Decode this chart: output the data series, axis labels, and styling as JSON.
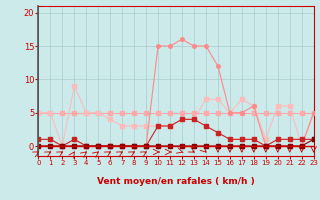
{
  "title": "",
  "xlabel": "Vent moyen/en rafales ( km/h )",
  "bg_color": "#cceaea",
  "grid_color": "#aacccc",
  "x_ticks": [
    0,
    1,
    2,
    3,
    4,
    5,
    6,
    7,
    8,
    9,
    10,
    11,
    12,
    13,
    14,
    15,
    16,
    17,
    18,
    19,
    20,
    21,
    22,
    23
  ],
  "y_ticks": [
    0,
    5,
    10,
    15,
    20
  ],
  "xlim": [
    0,
    23
  ],
  "ylim": [
    0,
    21
  ],
  "line_light_flat_x": [
    0,
    1,
    2,
    3,
    4,
    5,
    6,
    7,
    8,
    9,
    10,
    11,
    12,
    13,
    14,
    15,
    16,
    17,
    18,
    19,
    20,
    21,
    22,
    23
  ],
  "line_light_flat_y": [
    5,
    5,
    5,
    5,
    5,
    5,
    5,
    5,
    5,
    5,
    5,
    5,
    5,
    5,
    5,
    5,
    5,
    5,
    5,
    5,
    5,
    5,
    5,
    5
  ],
  "line_light_flat_color": "#ffaaaa",
  "line_med_x": [
    0,
    1,
    2,
    3,
    4,
    5,
    6,
    7,
    8,
    9,
    10,
    11,
    12,
    13,
    14,
    15,
    16,
    17,
    18,
    19,
    20,
    21,
    22,
    23
  ],
  "line_med_y": [
    5,
    5,
    0,
    9,
    5,
    5,
    4,
    3,
    3,
    3,
    3,
    3,
    4,
    4,
    7,
    7,
    5,
    7,
    6,
    1,
    6,
    6,
    0,
    5
  ],
  "line_med_color": "#ffbbbb",
  "line_salmon_x": [
    0,
    1,
    2,
    3,
    4,
    5,
    6,
    7,
    8,
    9,
    10,
    11,
    12,
    13,
    14,
    15,
    16,
    17,
    18,
    19,
    20,
    21,
    22,
    23
  ],
  "line_salmon_y": [
    0,
    0,
    0,
    0,
    0,
    0,
    0,
    0,
    0,
    0,
    15,
    15,
    16,
    15,
    15,
    12,
    5,
    5,
    6,
    0,
    0,
    0,
    0,
    5
  ],
  "line_salmon_color": "#ff8888",
  "line_dark_x": [
    0,
    1,
    2,
    3,
    4,
    5,
    6,
    7,
    8,
    9,
    10,
    11,
    12,
    13,
    14,
    15,
    16,
    17,
    18,
    19,
    20,
    21,
    22,
    23
  ],
  "line_dark_y": [
    1,
    1,
    0,
    1,
    0,
    0,
    0,
    0,
    0,
    0,
    3,
    3,
    4,
    4,
    3,
    2,
    1,
    1,
    1,
    0,
    1,
    1,
    1,
    1
  ],
  "line_dark_color": "#cc2222",
  "line_darkest_x": [
    0,
    1,
    2,
    3,
    4,
    5,
    6,
    7,
    8,
    9,
    10,
    11,
    12,
    13,
    14,
    15,
    16,
    17,
    18,
    19,
    20,
    21,
    22,
    23
  ],
  "line_darkest_y": [
    0,
    0,
    0,
    0,
    0,
    0,
    0,
    0,
    0,
    0,
    0,
    0,
    0,
    0,
    0,
    0,
    0,
    0,
    0,
    0,
    0,
    0,
    0,
    1
  ],
  "line_darkest_color": "#880000",
  "arrow_directions_deg": [
    225,
    225,
    225,
    200,
    215,
    215,
    225,
    225,
    225,
    225,
    270,
    270,
    300,
    315,
    330,
    0,
    0,
    0,
    0,
    0,
    0,
    0,
    0,
    0
  ],
  "tick_label_color": "#cc0000",
  "xlabel_color": "#cc0000",
  "axis_line_color": "#cc0000",
  "yaxis_line_color": "#555555",
  "marker_size": 2.5,
  "linewidth": 0.8
}
